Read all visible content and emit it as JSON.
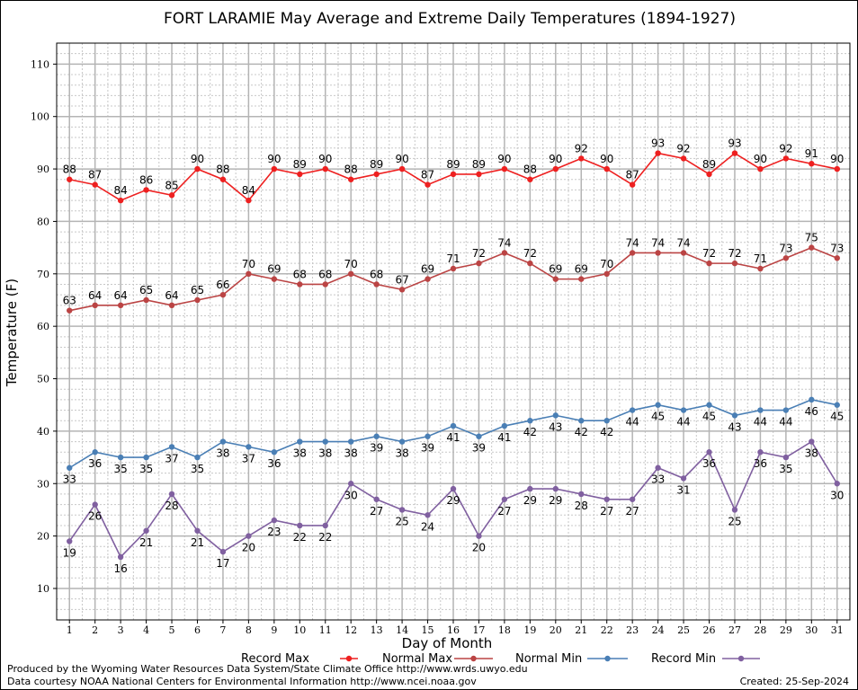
{
  "chart_data": {
    "type": "line",
    "title": "FORT LARAMIE May Average and Extreme Daily Temperatures (1894-1927)",
    "xlabel": "Day of Month",
    "ylabel": "Temperature (F)",
    "xlim": [
      0.5,
      31.5
    ],
    "ylim": [
      4,
      114
    ],
    "x": [
      1,
      2,
      3,
      4,
      5,
      6,
      7,
      8,
      9,
      10,
      11,
      12,
      13,
      14,
      15,
      16,
      17,
      18,
      19,
      20,
      21,
      22,
      23,
      24,
      25,
      26,
      27,
      28,
      29,
      30,
      31
    ],
    "x_tick_labels": [
      "1",
      "2",
      "3",
      "4",
      "5",
      "6",
      "7",
      "8",
      "9",
      "10",
      "11",
      "12",
      "13",
      "14",
      "15",
      "16",
      "17",
      "18",
      "19",
      "20",
      "21",
      "22",
      "23",
      "24",
      "25",
      "26",
      "27",
      "28",
      "29",
      "30",
      "31"
    ],
    "y_ticks": [
      10,
      20,
      30,
      40,
      50,
      60,
      70,
      80,
      90,
      100,
      110
    ],
    "grid": true,
    "legend_position": "bottom",
    "series": [
      {
        "name": "Record Max",
        "color": "#ee2020",
        "label_pos": "above",
        "values": [
          88,
          87,
          84,
          86,
          85,
          90,
          88,
          84,
          90,
          89,
          90,
          88,
          89,
          90,
          87,
          89,
          89,
          90,
          88,
          90,
          92,
          90,
          87,
          93,
          92,
          89,
          93,
          90,
          92,
          91,
          90
        ]
      },
      {
        "name": "Normal Max",
        "color": "#bb4444",
        "label_pos": "above",
        "values": [
          63,
          64,
          64,
          65,
          64,
          65,
          66,
          70,
          69,
          68,
          68,
          70,
          68,
          67,
          69,
          71,
          72,
          74,
          72,
          69,
          69,
          70,
          74,
          74,
          74,
          72,
          72,
          71,
          73,
          75,
          73
        ]
      },
      {
        "name": "Normal Min",
        "color": "#4a7fb5",
        "label_pos": "below",
        "values": [
          33,
          36,
          35,
          35,
          37,
          35,
          38,
          37,
          36,
          38,
          38,
          38,
          39,
          38,
          39,
          41,
          39,
          41,
          42,
          43,
          42,
          42,
          44,
          45,
          44,
          45,
          43,
          44,
          44,
          46,
          45
        ]
      },
      {
        "name": "Record Min",
        "color": "#8060a0",
        "label_pos": "below",
        "values": [
          19,
          26,
          16,
          21,
          28,
          21,
          17,
          20,
          23,
          22,
          22,
          30,
          27,
          25,
          24,
          29,
          20,
          27,
          29,
          29,
          28,
          27,
          27,
          33,
          31,
          36,
          25,
          36,
          35,
          38,
          30
        ]
      }
    ]
  },
  "footer": {
    "credit_line1": "Produced by the Wyoming Water Resources Data System/State Climate Office http://www.wrds.uwyo.edu",
    "credit_line2": "Data courtesy NOAA National Centers for Environmental Information http://www.ncei.noaa.gov",
    "created": "Created:  25-Sep-2024"
  }
}
